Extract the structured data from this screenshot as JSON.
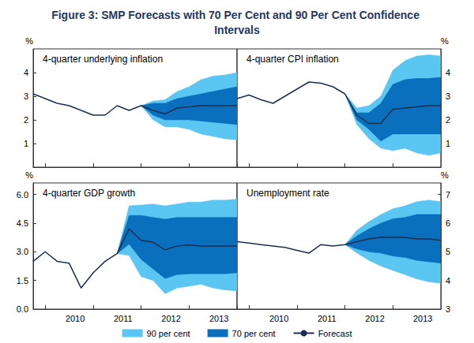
{
  "title": "Figure 3: SMP Forecasts with 70 Per Cent and 90 Per Cent Confidence Intervals",
  "chart_data": [
    {
      "type": "line",
      "title": "4-quarter underlying inflation",
      "ylabel": "%",
      "categories": [
        null,
        null,
        null,
        "2010",
        null,
        null,
        null,
        "2011",
        null,
        null,
        null,
        "2012",
        null,
        null,
        null,
        "2013",
        null,
        null
      ],
      "ylim": [
        0,
        5
      ],
      "yticks": [
        1,
        2,
        3,
        4
      ],
      "grid": false,
      "legend": "bottom",
      "tick_labels": "y",
      "series": [
        {
          "name": "90 per cent",
          "type": "band",
          "color": "#5cc6f2",
          "lower": [
            null,
            null,
            null,
            null,
            null,
            null,
            null,
            null,
            null,
            2.6,
            2.0,
            1.7,
            1.7,
            1.6,
            1.4,
            1.3,
            1.2,
            1.15
          ],
          "upper": [
            null,
            null,
            null,
            null,
            null,
            null,
            null,
            null,
            null,
            2.6,
            2.8,
            2.85,
            3.2,
            3.4,
            3.7,
            3.85,
            3.9,
            4.0
          ]
        },
        {
          "name": "70 per cent",
          "type": "band",
          "color": "#0a6fbd",
          "lower": [
            null,
            null,
            null,
            null,
            null,
            null,
            null,
            null,
            null,
            2.6,
            2.2,
            2.0,
            2.0,
            2.0,
            1.95,
            1.9,
            1.85,
            1.8
          ],
          "upper": [
            null,
            null,
            null,
            null,
            null,
            null,
            null,
            null,
            null,
            2.6,
            2.7,
            2.7,
            2.9,
            3.0,
            3.1,
            3.2,
            3.3,
            3.4
          ]
        },
        {
          "name": "Forecast",
          "type": "line",
          "color": "#1d2f4f",
          "values": [
            3.1,
            2.9,
            2.7,
            2.6,
            2.4,
            2.2,
            2.2,
            2.6,
            2.4,
            2.6,
            2.4,
            2.25,
            2.5,
            2.55,
            2.6,
            2.6,
            2.6,
            2.6
          ]
        }
      ]
    },
    {
      "type": "line",
      "title": "4-quarter CPI inflation",
      "ylabel": "%",
      "categories": [
        null,
        null,
        null,
        "2010",
        null,
        null,
        null,
        "2011",
        null,
        null,
        null,
        "2012",
        null,
        null,
        null,
        "2013",
        null,
        null
      ],
      "ylim": [
        0,
        5
      ],
      "yticks": [
        1,
        2,
        3,
        4
      ],
      "grid": false,
      "legend": "bottom",
      "tick_labels": "y",
      "series": [
        {
          "name": "90 per cent",
          "type": "band",
          "color": "#5cc6f2",
          "lower": [
            null,
            null,
            null,
            null,
            null,
            null,
            null,
            null,
            null,
            3.1,
            1.8,
            1.2,
            0.8,
            0.7,
            0.8,
            0.6,
            0.5,
            0.6
          ],
          "upper": [
            null,
            null,
            null,
            null,
            null,
            null,
            null,
            null,
            null,
            3.1,
            2.5,
            2.6,
            3.0,
            4.1,
            4.5,
            4.7,
            4.75,
            4.7
          ]
        },
        {
          "name": "70 per cent",
          "type": "band",
          "color": "#0a6fbd",
          "lower": [
            null,
            null,
            null,
            null,
            null,
            null,
            null,
            null,
            null,
            3.1,
            2.0,
            1.6,
            1.1,
            1.4,
            1.4,
            1.4,
            1.4,
            1.4
          ],
          "upper": [
            null,
            null,
            null,
            null,
            null,
            null,
            null,
            null,
            null,
            3.1,
            2.3,
            2.3,
            2.7,
            3.5,
            3.7,
            3.75,
            3.75,
            3.8
          ]
        },
        {
          "name": "Forecast",
          "type": "line",
          "color": "#1d2f4f",
          "values": [
            2.9,
            3.05,
            2.85,
            2.7,
            3.0,
            3.3,
            3.6,
            3.55,
            3.4,
            3.1,
            2.2,
            1.85,
            1.85,
            2.45,
            2.5,
            2.55,
            2.6,
            2.6
          ]
        }
      ]
    },
    {
      "type": "line",
      "title": "4-quarter GDP growth",
      "ylabel": "%",
      "categories": [
        null,
        null,
        null,
        "2010",
        null,
        null,
        null,
        "2011",
        null,
        null,
        null,
        "2012",
        null,
        null,
        null,
        "2013",
        null,
        null
      ],
      "ylim": [
        0,
        6.6
      ],
      "yticks": [
        {
          "value": 0,
          "label": "0.0"
        },
        {
          "value": 1.5,
          "label": "1.5"
        },
        {
          "value": 3,
          "label": "3.0"
        },
        {
          "value": 4.5,
          "label": "4.5"
        },
        {
          "value": 6,
          "label": "6.0"
        }
      ],
      "grid": false,
      "legend": "bottom",
      "series": [
        {
          "name": "90 per cent",
          "type": "band",
          "color": "#5cc6f2",
          "lower": [
            null,
            null,
            null,
            null,
            null,
            null,
            null,
            2.9,
            2.8,
            1.7,
            1.5,
            0.8,
            1.1,
            1.2,
            1.3,
            1.1,
            1.0,
            0.95
          ],
          "upper": [
            null,
            null,
            null,
            null,
            null,
            null,
            null,
            2.9,
            5.4,
            5.45,
            5.5,
            5.4,
            5.5,
            5.6,
            5.6,
            5.7,
            5.7,
            5.75
          ]
        },
        {
          "name": "70 per cent",
          "type": "band",
          "color": "#0a6fbd",
          "lower": [
            null,
            null,
            null,
            null,
            null,
            null,
            null,
            2.9,
            3.4,
            2.6,
            2.1,
            1.6,
            1.8,
            1.85,
            1.85,
            1.85,
            1.85,
            1.9
          ],
          "upper": [
            null,
            null,
            null,
            null,
            null,
            null,
            null,
            2.9,
            4.9,
            4.9,
            4.8,
            4.7,
            4.8,
            4.8,
            4.8,
            4.8,
            4.8,
            4.8
          ]
        },
        {
          "name": "Forecast",
          "type": "line",
          "color": "#1d2f4f",
          "values": [
            2.5,
            3.0,
            2.5,
            2.4,
            1.1,
            1.9,
            2.5,
            2.9,
            4.2,
            3.6,
            3.5,
            3.1,
            3.3,
            3.35,
            3.3,
            3.3,
            3.3,
            3.3
          ]
        }
      ]
    },
    {
      "type": "line",
      "title": "Unemployment rate",
      "ylabel": "%",
      "categories": [
        null,
        null,
        null,
        "2010",
        null,
        null,
        null,
        "2011",
        null,
        null,
        null,
        "2012",
        null,
        null,
        null,
        "2013",
        null,
        null
      ],
      "ylim": [
        3,
        7.4
      ],
      "yticks": [
        3,
        4,
        5,
        6,
        7
      ],
      "grid": false,
      "legend": "bottom",
      "series": [
        {
          "name": "90 per cent",
          "type": "band",
          "color": "#5cc6f2",
          "lower": [
            null,
            null,
            null,
            null,
            null,
            null,
            null,
            null,
            null,
            5.25,
            4.95,
            4.7,
            4.5,
            4.35,
            4.2,
            4.05,
            3.95,
            3.9
          ],
          "upper": [
            null,
            null,
            null,
            null,
            null,
            null,
            null,
            null,
            null,
            5.25,
            5.75,
            6.05,
            6.3,
            6.5,
            6.6,
            6.75,
            6.8,
            6.75
          ]
        },
        {
          "name": "70 per cent",
          "type": "band",
          "color": "#0a6fbd",
          "lower": [
            null,
            null,
            null,
            null,
            null,
            null,
            null,
            null,
            null,
            5.25,
            5.1,
            5.0,
            4.95,
            4.85,
            4.8,
            4.7,
            4.65,
            4.6
          ],
          "upper": [
            null,
            null,
            null,
            null,
            null,
            null,
            null,
            null,
            null,
            5.25,
            5.55,
            5.8,
            6.0,
            6.15,
            6.2,
            6.3,
            6.3,
            6.3
          ]
        },
        {
          "name": "Forecast",
          "type": "line",
          "color": "#1d2f4f",
          "values": [
            5.35,
            5.3,
            5.25,
            5.2,
            5.15,
            5.05,
            4.95,
            5.25,
            5.2,
            5.25,
            5.35,
            5.45,
            5.5,
            5.5,
            5.5,
            5.45,
            5.45,
            5.4
          ]
        }
      ]
    }
  ]
}
